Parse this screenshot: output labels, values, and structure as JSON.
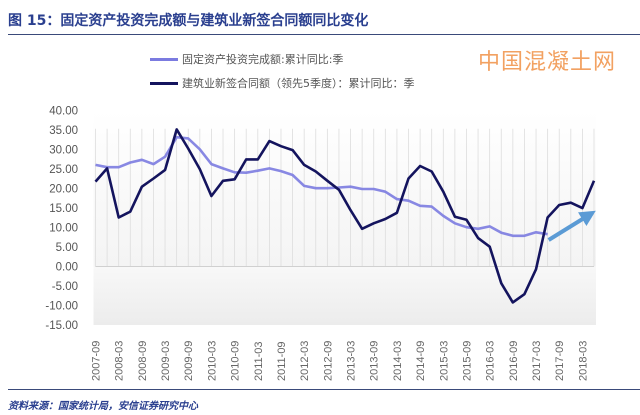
{
  "title": "图 15：固定资产投资完成额与建筑业新签合同额同比变化",
  "source": "资料来源：国家统计局，安信证券研究中心",
  "watermark": "中国混凝土网",
  "chart_data": {
    "type": "line",
    "ylim": [
      -15,
      40
    ],
    "yticks": [
      "40.00",
      "35.00",
      "30.00",
      "25.00",
      "20.00",
      "15.00",
      "10.00",
      "5.00",
      "0.00",
      "-5.00",
      "-10.00",
      "-15.00"
    ],
    "ytick_values": [
      40,
      35,
      30,
      25,
      20,
      15,
      10,
      5,
      0,
      -5,
      -10,
      -15
    ],
    "x": [
      "2007-09",
      "2007-12",
      "2008-03",
      "2008-06",
      "2008-09",
      "2008-12",
      "2009-03",
      "2009-06",
      "2009-09",
      "2009-12",
      "2010-03",
      "2010-06",
      "2010-09",
      "2010-12",
      "2011-03",
      "2011-06",
      "2011-09",
      "2011-12",
      "2012-03",
      "2012-06",
      "2012-09",
      "2012-12",
      "2013-03",
      "2013-06",
      "2013-09",
      "2013-12",
      "2014-03",
      "2014-06",
      "2014-09",
      "2014-12",
      "2015-03",
      "2015-06",
      "2015-09",
      "2015-12",
      "2016-03",
      "2016-06",
      "2016-09",
      "2016-12",
      "2017-03",
      "2017-06",
      "2017-09",
      "2017-12",
      "2018-03",
      "2018-06"
    ],
    "xtick_labels": [
      "2007-09",
      "2008-03",
      "2008-09",
      "2009-03",
      "2009-09",
      "2010-03",
      "2010-09",
      "2011-03",
      "2011-09",
      "2012-03",
      "2012-09",
      "2013-03",
      "2013-09",
      "2014-03",
      "2014-09",
      "2015-03",
      "2015-09",
      "2016-03",
      "2016-09",
      "2017-03",
      "2017-09",
      "2018-03"
    ],
    "series": [
      {
        "name": "固定资产投资完成额:累计同比:季",
        "color": "#7b7be0",
        "values": [
          26.1,
          25.5,
          25.5,
          26.7,
          27.4,
          26.3,
          28.2,
          33.2,
          32.9,
          30.1,
          26.3,
          25.2,
          24.2,
          24.1,
          24.6,
          25.2,
          24.5,
          23.5,
          20.7,
          20.1,
          20.1,
          20.3,
          20.5,
          19.9,
          19.9,
          19.2,
          17.3,
          16.9,
          15.6,
          15.4,
          13.0,
          11.1,
          10.1,
          9.7,
          10.3,
          8.7,
          7.9,
          7.9,
          8.8,
          8.3,
          null,
          null,
          null,
          null
        ]
      },
      {
        "name": "建筑业新签合同额（领先5季度）：累计同比：季",
        "color": "#14145e",
        "values": [
          21.8,
          25.2,
          12.6,
          14.1,
          20.5,
          22.6,
          24.8,
          35.2,
          30.3,
          25.0,
          18.1,
          22.0,
          22.4,
          27.5,
          27.5,
          32.2,
          30.9,
          29.9,
          26.1,
          24.4,
          22.0,
          19.7,
          14.5,
          9.7,
          11.1,
          12.2,
          13.8,
          22.6,
          25.8,
          24.4,
          19.2,
          12.8,
          12.0,
          7.3,
          5.1,
          -4.3,
          -9.2,
          -7.1,
          -0.7,
          12.6,
          15.8,
          16.4,
          15.0,
          22.0
        ]
      }
    ],
    "annotations": [
      {
        "type": "arrow",
        "color": "#5b9bd5",
        "from_x": "2017-06",
        "to_x": "2018-06",
        "meaning": "upward trend"
      }
    ],
    "legend": "top-center",
    "grid": "vertical"
  }
}
